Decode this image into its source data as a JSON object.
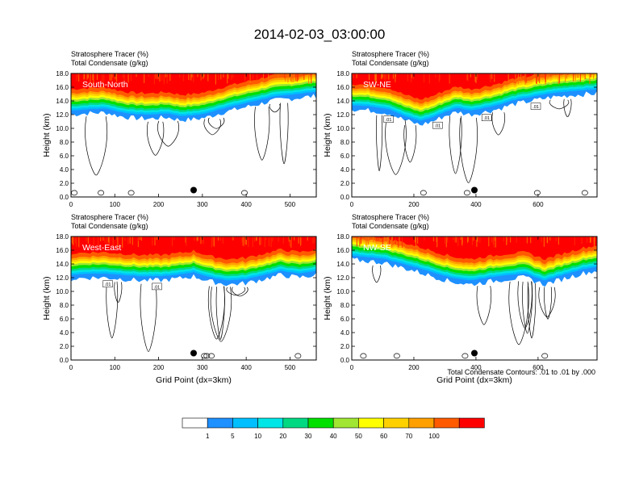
{
  "figure": {
    "title": "2014-02-03_03:00:00",
    "footnote": "Total Condensate Contours: .01 to .01 by .000"
  },
  "chart_data": [
    {
      "type": "heatmap",
      "panel": "South-North",
      "fill_label": "Stratosphere Tracer   (%)",
      "contour_label": "Total Condensate   (g/kg)",
      "ylabel": "Height (km)",
      "xlabel": "",
      "xlim": [
        0,
        560
      ],
      "ylim": [
        0,
        18
      ],
      "xticks": [
        0,
        100,
        200,
        300,
        400,
        500
      ],
      "yticks": [
        0.0,
        2.0,
        4.0,
        6.0,
        8.0,
        10.0,
        12.0,
        14.0,
        16.0,
        18.0
      ],
      "marker": {
        "x": 280,
        "y": 1.0
      },
      "tracer_base_km": [
        [
          0,
          12.0
        ],
        [
          40,
          12.2
        ],
        [
          80,
          12.3
        ],
        [
          110,
          11.8
        ],
        [
          140,
          11.5
        ],
        [
          180,
          11.4
        ],
        [
          220,
          11.6
        ],
        [
          250,
          11.2
        ],
        [
          280,
          11.3
        ],
        [
          310,
          11.6
        ],
        [
          340,
          12.2
        ],
        [
          380,
          12.8
        ],
        [
          420,
          13.4
        ],
        [
          460,
          14.0
        ],
        [
          500,
          14.3
        ],
        [
          540,
          14.6
        ],
        [
          560,
          14.7
        ]
      ],
      "contour_labels": []
    },
    {
      "type": "heatmap",
      "panel": "SW-NE",
      "fill_label": "Stratosphere Tracer   (%)",
      "contour_label": "Total Condensate   (g/kg)",
      "ylabel": "Height (km)",
      "xlabel": "",
      "xlim": [
        0,
        790
      ],
      "ylim": [
        0,
        18
      ],
      "xticks": [
        0,
        200,
        400,
        600
      ],
      "yticks": [
        0.0,
        2.0,
        4.0,
        6.0,
        8.0,
        10.0,
        12.0,
        14.0,
        16.0,
        18.0
      ],
      "marker": {
        "x": 395,
        "y": 1.0
      },
      "tracer_base_km": [
        [
          0,
          12.8
        ],
        [
          60,
          12.6
        ],
        [
          120,
          12.2
        ],
        [
          170,
          11.2
        ],
        [
          220,
          10.5
        ],
        [
          260,
          11.0
        ],
        [
          300,
          11.8
        ],
        [
          340,
          12.4
        ],
        [
          380,
          12.0
        ],
        [
          420,
          12.3
        ],
        [
          470,
          12.8
        ],
        [
          520,
          13.5
        ],
        [
          580,
          14.0
        ],
        [
          640,
          14.5
        ],
        [
          700,
          14.8
        ],
        [
          760,
          15.0
        ],
        [
          790,
          15.1
        ]
      ],
      "contour_labels": [
        ".01",
        ".01",
        ".01",
        ".01"
      ]
    },
    {
      "type": "heatmap",
      "panel": "West-East",
      "fill_label": "Stratosphere Tracer   (%)",
      "contour_label": "Total Condensate   (g/kg)",
      "ylabel": "Height (km)",
      "xlabel": "Grid Point (dx=3km)",
      "xlim": [
        0,
        560
      ],
      "ylim": [
        0,
        18
      ],
      "xticks": [
        0,
        100,
        200,
        300,
        400,
        500
      ],
      "yticks": [
        0.0,
        2.0,
        4.0,
        6.0,
        8.0,
        10.0,
        12.0,
        14.0,
        16.0,
        18.0
      ],
      "marker": {
        "x": 280,
        "y": 1.0
      },
      "tracer_base_km": [
        [
          0,
          11.8
        ],
        [
          40,
          12.0
        ],
        [
          80,
          12.0
        ],
        [
          120,
          11.8
        ],
        [
          160,
          11.6
        ],
        [
          200,
          11.6
        ],
        [
          240,
          11.8
        ],
        [
          280,
          12.2
        ],
        [
          320,
          11.4
        ],
        [
          360,
          11.0
        ],
        [
          400,
          11.2
        ],
        [
          440,
          11.8
        ],
        [
          480,
          12.4
        ],
        [
          520,
          12.0
        ],
        [
          560,
          12.4
        ]
      ],
      "contour_labels": [
        ".01",
        ".01"
      ]
    },
    {
      "type": "heatmap",
      "panel": "NW-SE",
      "fill_label": "Stratosphere Tracer   (%)",
      "contour_label": "Total Condensate   (g/kg)",
      "ylabel": "Height (km)",
      "xlabel": "Grid Point (dx=3km)",
      "xlim": [
        0,
        790
      ],
      "ylim": [
        0,
        18
      ],
      "xticks": [
        0,
        200,
        400,
        600
      ],
      "yticks": [
        0.0,
        2.0,
        4.0,
        6.0,
        8.0,
        10.0,
        12.0,
        14.0,
        16.0,
        18.0
      ],
      "marker": {
        "x": 395,
        "y": 1.0
      },
      "tracer_base_km": [
        [
          0,
          14.6
        ],
        [
          100,
          14.2
        ],
        [
          200,
          13.0
        ],
        [
          260,
          12.2
        ],
        [
          320,
          11.4
        ],
        [
          380,
          11.0
        ],
        [
          440,
          11.4
        ],
        [
          500,
          11.8
        ],
        [
          560,
          12.0
        ],
        [
          620,
          11.0
        ],
        [
          680,
          11.8
        ],
        [
          740,
          12.6
        ],
        [
          790,
          13.0
        ]
      ],
      "contour_labels": []
    }
  ],
  "colorbar": {
    "colors": [
      "#ffffff",
      "#1e90ff",
      "#00bfff",
      "#00e5e5",
      "#00d982",
      "#00e000",
      "#a0e632",
      "#ffff00",
      "#ffd000",
      "#ffa000",
      "#ff5a00",
      "#ff0000"
    ],
    "labels": [
      "1",
      "5",
      "10",
      "20",
      "30",
      "40",
      "50",
      "60",
      "70",
      "100"
    ]
  }
}
